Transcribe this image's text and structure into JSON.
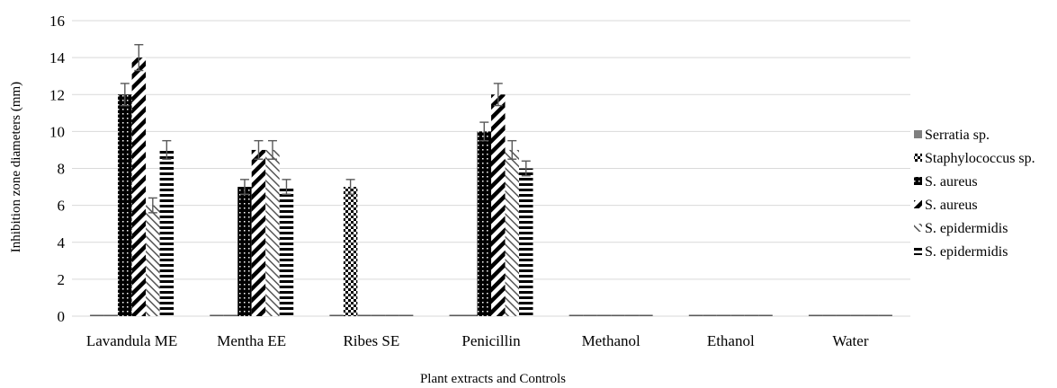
{
  "chart_data": {
    "type": "bar",
    "title": "",
    "xlabel": "Plant extracts and Controls",
    "ylabel": "Inhibition zone diameters (mm)",
    "ylim": [
      0,
      16
    ],
    "yticks": [
      0,
      2,
      4,
      6,
      8,
      10,
      12,
      14,
      16
    ],
    "grid": true,
    "legend_position": "right",
    "categories": [
      "Lavandula ME",
      "Mentha EE",
      "Ribes SE",
      "Penicillin",
      "Methanol",
      "Ethanol",
      "Water"
    ],
    "series": [
      {
        "name": "Serratia sp.",
        "pattern": "solid-gray",
        "values": [
          0,
          0,
          0,
          0,
          0,
          0,
          0
        ],
        "errors": [
          0,
          0,
          0,
          0,
          0,
          0,
          0
        ]
      },
      {
        "name": "Staphylococcus sp.",
        "pattern": "checker",
        "values": [
          0,
          0,
          7,
          0,
          0,
          0,
          0
        ],
        "errors": [
          0,
          0,
          0.4,
          0,
          0,
          0,
          0
        ]
      },
      {
        "name": "S. aureus",
        "pattern": "dots-on-black",
        "values": [
          12,
          7,
          0,
          10,
          0,
          0,
          0
        ],
        "errors": [
          0.6,
          0.4,
          0,
          0.5,
          0,
          0,
          0
        ]
      },
      {
        "name": "S. aureus",
        "pattern": "wide-diagonal",
        "values": [
          14,
          9,
          0,
          12,
          0,
          0,
          0
        ],
        "errors": [
          0.7,
          0.5,
          0,
          0.6,
          0,
          0,
          0
        ]
      },
      {
        "name": "S. epidermidis",
        "pattern": "light-diagonal",
        "values": [
          6,
          9,
          0,
          9,
          0,
          0,
          0
        ],
        "errors": [
          0.4,
          0.5,
          0,
          0.5,
          0,
          0,
          0
        ]
      },
      {
        "name": "S. epidermidis",
        "pattern": "horizontal",
        "values": [
          9,
          7,
          0,
          8,
          0,
          0,
          0
        ],
        "errors": [
          0.5,
          0.4,
          0,
          0.4,
          0,
          0,
          0
        ]
      }
    ]
  }
}
